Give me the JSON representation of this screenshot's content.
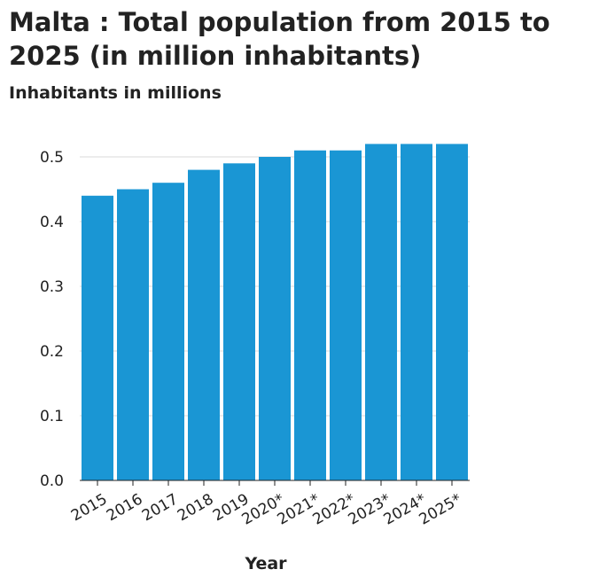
{
  "chart_data": {
    "type": "bar",
    "title": "Malta : Total population from 2015 to 2025 (in million inhabitants)",
    "ylabel": "Inhabitants in millions",
    "xlabel": "Year",
    "categories": [
      "2015",
      "2016",
      "2017",
      "2018",
      "2019",
      "2020*",
      "2021*",
      "2022*",
      "2023*",
      "2024*",
      "2025*"
    ],
    "values": [
      0.44,
      0.45,
      0.46,
      0.48,
      0.49,
      0.5,
      0.51,
      0.51,
      0.52,
      0.52,
      0.52
    ],
    "yticks": [
      "0.0",
      "0.1",
      "0.2",
      "0.3",
      "0.4",
      "0.5"
    ],
    "ylim": [
      0,
      0.5
    ],
    "grid": "horizontal",
    "bar_color": "#1a96d4"
  }
}
